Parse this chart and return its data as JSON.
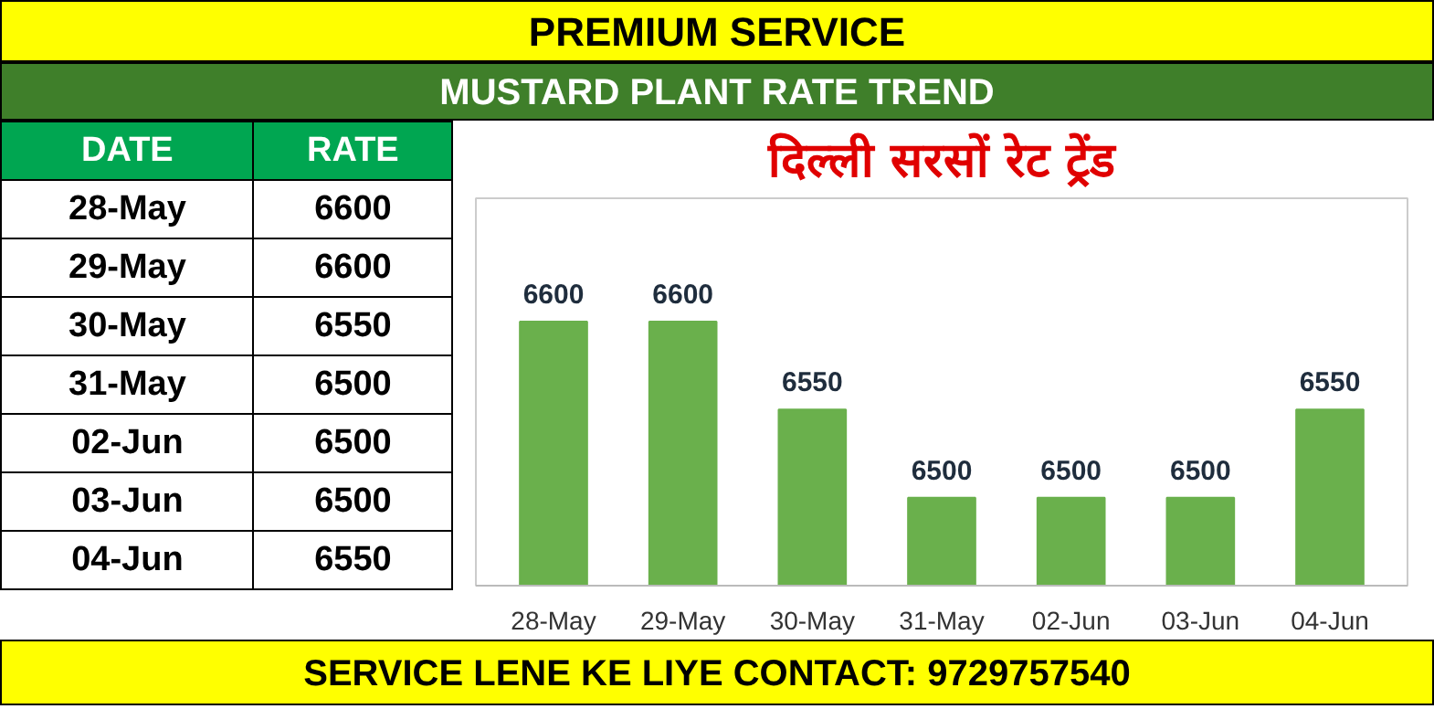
{
  "chart_data": [
    {
      "type": "other",
      "categories": [
        "28-May",
        "29-May",
        "30-May",
        "31-May",
        "02-Jun",
        "03-Jun",
        "04-Jun"
      ],
      "values": [
        6600,
        6600,
        6550,
        6500,
        6500,
        6500,
        6550
      ],
      "data_labels": true,
      "annotations": [
        "PREMIUM SERVICE",
        "MUSTARD PLANT RATE TREND",
        "DATE",
        "RATE",
        "SERVICE LENE KE LIYE CONTACT: 9729757540"
      ]
    },
    {
      "type": "bar",
      "title": "दिल्ली सरसों रेट ट्रेंड",
      "categories": [
        "28-May",
        "29-May",
        "30-May",
        "31-May",
        "02-Jun",
        "03-Jun",
        "04-Jun"
      ],
      "values": [
        6600,
        6600,
        6550,
        6500,
        6500,
        6500,
        6550
      ],
      "color": "#6ab04c",
      "data_labels": true,
      "grid": false,
      "tick_labels": "x",
      "ylim": [
        6450,
        6670
      ]
    }
  ]
}
